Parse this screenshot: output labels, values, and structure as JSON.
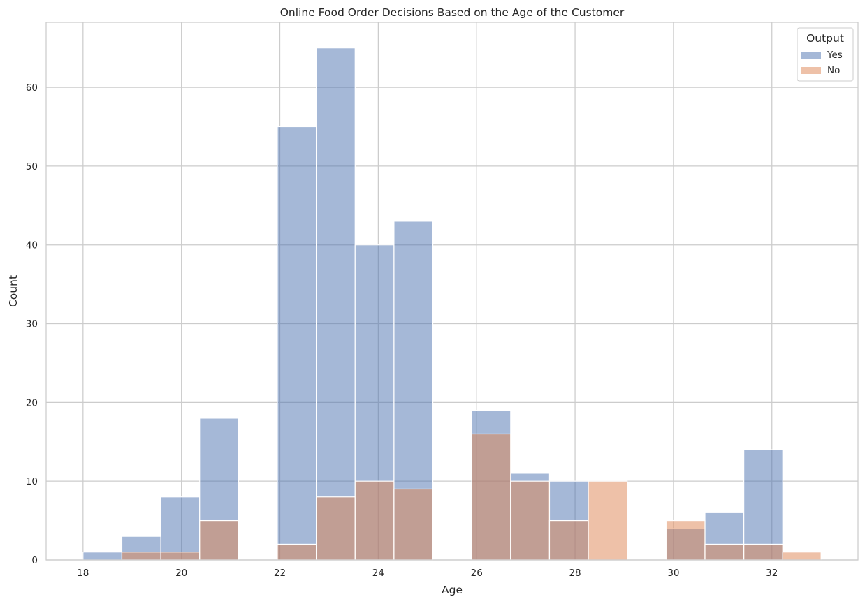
{
  "chart_data": {
    "type": "bar",
    "title": "Online Food Order Decisions Based on the Age of the Customer",
    "xlabel": "Age",
    "ylabel": "Count",
    "xlim": [
      17.25,
      33.75
    ],
    "ylim": [
      0,
      68.25
    ],
    "x_ticks": [
      18,
      20,
      22,
      24,
      26,
      28,
      30,
      32
    ],
    "y_ticks": [
      0,
      10,
      20,
      30,
      40,
      50,
      60
    ],
    "grid": true,
    "legend": {
      "title": "Output",
      "placement": "top-right"
    },
    "bin_edges": [
      18.0,
      18.79,
      19.58,
      20.37,
      21.16,
      21.95,
      22.74,
      23.53,
      24.32,
      25.11,
      25.9,
      26.69,
      27.48,
      28.27,
      29.06,
      29.85,
      30.64,
      31.43,
      32.22,
      33.0
    ],
    "series": [
      {
        "name": "Yes",
        "color": "#4c72b0",
        "values": [
          1,
          3,
          8,
          18,
          0,
          55,
          65,
          40,
          43,
          0,
          19,
          11,
          10,
          0,
          0,
          4,
          6,
          14,
          0
        ]
      },
      {
        "name": "No",
        "color": "#dd8452",
        "values": [
          0,
          1,
          1,
          5,
          0,
          2,
          8,
          10,
          9,
          0,
          16,
          10,
          5,
          10,
          0,
          5,
          2,
          2,
          1
        ]
      }
    ]
  }
}
